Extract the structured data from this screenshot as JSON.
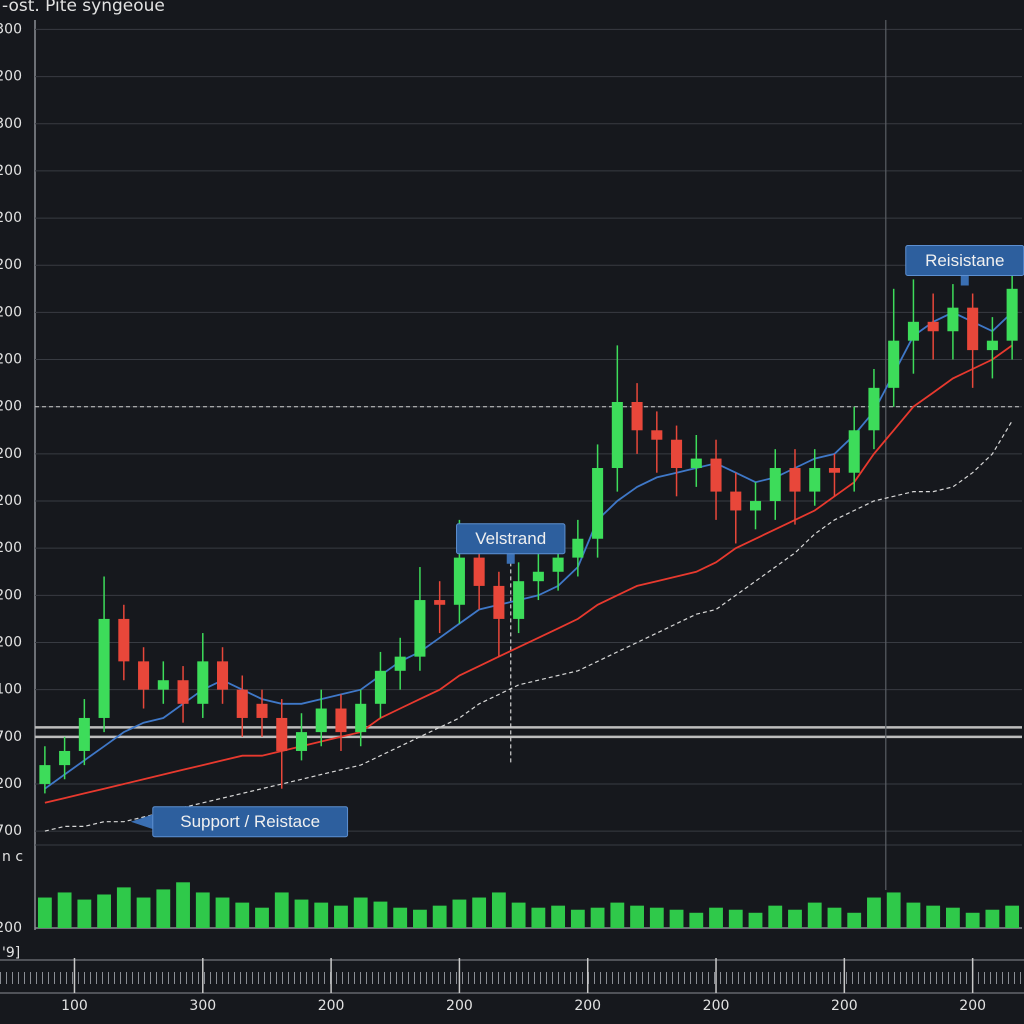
{
  "chart_data": {
    "type": "candlestick",
    "title": "-ost. Pite syngeoue",
    "x": [
      0,
      1,
      2,
      3,
      4,
      5,
      6,
      7,
      8,
      9,
      10,
      11,
      12,
      13,
      14,
      15,
      16,
      17,
      18,
      19,
      20,
      21,
      22,
      23,
      24,
      25,
      26,
      27,
      28,
      29,
      30,
      31,
      32,
      33,
      34,
      35,
      36,
      37,
      38,
      39,
      40,
      41,
      42,
      43,
      44,
      45,
      46,
      47,
      48,
      49
    ],
    "open": [
      1.0,
      1.4,
      1.7,
      2.4,
      4.5,
      3.6,
      3.0,
      3.2,
      2.7,
      3.6,
      3.0,
      2.7,
      2.4,
      1.7,
      2.1,
      2.6,
      2.1,
      2.7,
      3.4,
      3.7,
      4.9,
      4.8,
      5.8,
      5.2,
      4.5,
      5.3,
      5.5,
      5.8,
      6.2,
      7.7,
      9.1,
      8.5,
      8.3,
      7.7,
      7.9,
      7.2,
      6.8,
      7.0,
      7.7,
      7.2,
      7.7,
      7.6,
      8.5,
      9.4,
      10.4,
      10.8,
      10.6,
      11.1,
      10.2,
      10.4
    ],
    "high": [
      1.8,
      2.0,
      2.8,
      5.4,
      4.8,
      3.9,
      3.6,
      3.5,
      4.2,
      3.9,
      3.3,
      3.0,
      2.8,
      2.5,
      3.0,
      2.9,
      3.0,
      3.8,
      4.1,
      5.6,
      5.3,
      6.6,
      6.1,
      5.5,
      5.7,
      5.9,
      6.1,
      6.6,
      8.2,
      10.3,
      9.5,
      8.9,
      8.6,
      8.4,
      8.3,
      7.6,
      7.4,
      8.1,
      8.1,
      8.1,
      8.0,
      9.0,
      9.8,
      11.5,
      11.7,
      11.4,
      11.6,
      11.4,
      10.9,
      12.0
    ],
    "low": [
      0.8,
      1.1,
      1.4,
      2.1,
      3.2,
      2.6,
      2.7,
      2.3,
      2.4,
      2.7,
      2.0,
      2.0,
      0.9,
      1.5,
      1.8,
      1.7,
      1.8,
      2.4,
      3.0,
      3.4,
      4.2,
      4.4,
      4.7,
      3.7,
      4.2,
      4.9,
      5.1,
      5.4,
      5.8,
      7.2,
      8.0,
      7.6,
      7.1,
      7.3,
      6.6,
      6.1,
      6.4,
      6.6,
      6.5,
      6.9,
      7.1,
      7.2,
      8.1,
      9.0,
      9.7,
      10.0,
      10.0,
      9.4,
      9.6,
      10.0
    ],
    "close": [
      1.4,
      1.7,
      2.4,
      4.5,
      3.6,
      3.0,
      3.2,
      2.7,
      3.6,
      3.0,
      2.4,
      2.4,
      1.7,
      2.1,
      2.6,
      2.1,
      2.7,
      3.4,
      3.7,
      4.9,
      4.8,
      5.8,
      5.2,
      4.5,
      5.3,
      5.5,
      5.8,
      6.2,
      7.7,
      9.1,
      8.5,
      8.3,
      7.7,
      7.9,
      7.2,
      6.8,
      7.0,
      7.7,
      7.2,
      7.7,
      7.6,
      8.5,
      9.4,
      10.4,
      10.8,
      10.6,
      11.1,
      10.2,
      10.4,
      11.5
    ],
    "up_color": "#3ddc5a",
    "down_color": "#e8473a",
    "lines": [
      {
        "color": "#3f78c8",
        "style": "solid",
        "values": [
          0.9,
          1.2,
          1.5,
          1.8,
          2.1,
          2.3,
          2.4,
          2.7,
          3.0,
          3.2,
          3.0,
          2.8,
          2.7,
          2.7,
          2.8,
          2.9,
          3.0,
          3.3,
          3.6,
          3.8,
          4.1,
          4.4,
          4.7,
          4.8,
          4.9,
          5.0,
          5.2,
          5.6,
          6.6,
          7.0,
          7.3,
          7.5,
          7.6,
          7.7,
          7.8,
          7.6,
          7.4,
          7.5,
          7.7,
          7.9,
          8.0,
          8.4,
          8.9,
          9.7,
          10.5,
          10.8,
          11.0,
          10.8,
          10.6,
          11.0
        ]
      },
      {
        "color": "#e8392e",
        "style": "solid",
        "values": [
          0.6,
          0.7,
          0.8,
          0.9,
          1.0,
          1.1,
          1.2,
          1.3,
          1.4,
          1.5,
          1.6,
          1.6,
          1.7,
          1.8,
          1.9,
          2.0,
          2.1,
          2.4,
          2.6,
          2.8,
          3.0,
          3.3,
          3.5,
          3.7,
          3.9,
          4.1,
          4.3,
          4.5,
          4.8,
          5.0,
          5.2,
          5.3,
          5.4,
          5.5,
          5.7,
          6.0,
          6.2,
          6.4,
          6.6,
          6.8,
          7.1,
          7.4,
          8.0,
          8.5,
          9.0,
          9.3,
          9.6,
          9.8,
          10.0,
          10.3
        ]
      },
      {
        "color": "#d8d8d8",
        "style": "dashed",
        "values": [
          0.0,
          0.1,
          0.1,
          0.2,
          0.2,
          0.3,
          0.4,
          0.5,
          0.6,
          0.7,
          0.8,
          0.9,
          1.0,
          1.1,
          1.2,
          1.3,
          1.4,
          1.6,
          1.8,
          2.0,
          2.2,
          2.4,
          2.7,
          2.9,
          3.1,
          3.2,
          3.3,
          3.4,
          3.6,
          3.8,
          4.0,
          4.2,
          4.4,
          4.6,
          4.7,
          5.0,
          5.3,
          5.6,
          5.9,
          6.3,
          6.6,
          6.8,
          7.0,
          7.1,
          7.2,
          7.2,
          7.3,
          7.6,
          8.0,
          8.7
        ]
      }
    ],
    "volume": [
      30,
      35,
      28,
      33,
      40,
      30,
      38,
      45,
      35,
      30,
      25,
      20,
      35,
      28,
      25,
      22,
      30,
      26,
      20,
      18,
      22,
      28,
      30,
      35,
      25,
      20,
      22,
      18,
      20,
      25,
      22,
      20,
      18,
      15,
      20,
      18,
      15,
      22,
      18,
      25,
      20,
      15,
      30,
      35,
      25,
      22,
      20,
      15,
      18,
      22
    ],
    "volume_color": "#2fc94a",
    "vlim": [
      0,
      65
    ],
    "vticks": [
      {
        "value": 0,
        "label": "200"
      }
    ],
    "panel_label": "n c",
    "footer_label": "'9]",
    "xlim": [
      -0.5,
      49.5
    ],
    "xticks": [
      {
        "value": 1.5,
        "label": "100"
      },
      {
        "value": 8,
        "label": "300"
      },
      {
        "value": 14.5,
        "label": "200"
      },
      {
        "value": 21,
        "label": "200"
      },
      {
        "value": 27.5,
        "label": "200"
      },
      {
        "value": 34,
        "label": "200"
      },
      {
        "value": 40.5,
        "label": "200"
      },
      {
        "value": 47,
        "label": "200"
      }
    ],
    "ylim": [
      -0.4,
      17.2
    ],
    "yticks": [
      {
        "value": 0,
        "label": "700"
      },
      {
        "value": 1,
        "label": "200"
      },
      {
        "value": 2,
        "label": "700"
      },
      {
        "value": 3,
        "label": "100"
      },
      {
        "value": 4,
        "label": "200"
      },
      {
        "value": 5,
        "label": "200"
      },
      {
        "value": 6,
        "label": "200"
      },
      {
        "value": 7,
        "label": "200"
      },
      {
        "value": 8,
        "label": "200"
      },
      {
        "value": 9,
        "label": "200"
      },
      {
        "value": 10,
        "label": "200"
      },
      {
        "value": 11,
        "label": "200"
      },
      {
        "value": 12,
        "label": "200"
      },
      {
        "value": 13,
        "label": "200"
      },
      {
        "value": 14,
        "label": "200"
      },
      {
        "value": 15,
        "label": "300"
      },
      {
        "value": 16,
        "label": "200"
      },
      {
        "value": 17,
        "label": "300"
      }
    ],
    "grid": true,
    "hlines": [
      {
        "value": 9,
        "style": "dashed"
      },
      {
        "value": 2.2,
        "style": "solid"
      },
      {
        "value": 2.0,
        "style": "solid"
      }
    ],
    "vlines": [
      {
        "x": 42.6,
        "style": "solid"
      },
      {
        "x": 23.6,
        "from": 1.4,
        "to": 5.7,
        "style": "dashed"
      }
    ],
    "annotations": [
      {
        "text": "Velstrand",
        "x": 23.6,
        "y": 6.2,
        "pointer": "down"
      },
      {
        "text": "Reisistane",
        "x": 46.6,
        "y": 12.1,
        "pointer": "down"
      },
      {
        "text": "Support / Reistace",
        "x": 10.4,
        "y": 0.2,
        "pointer": "left"
      }
    ]
  }
}
